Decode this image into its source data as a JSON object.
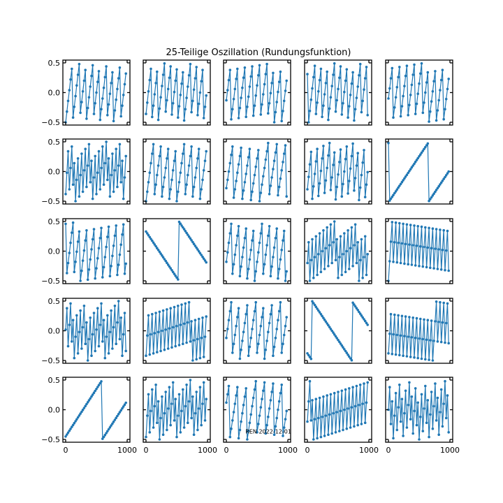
{
  "chart_data": {
    "type": "line",
    "title": "25-Teilige Oszillation (Rundungsfunktion)",
    "grid": false,
    "layout": {
      "rows": 5,
      "cols": 5
    },
    "xlim": [
      0,
      1000
    ],
    "ylim": [
      -0.5,
      0.5
    ],
    "x_ticks": [
      0,
      1000
    ],
    "x_tick_labels": [
      "0",
      "1000"
    ],
    "y_ticks": [
      0.5,
      0.0,
      -0.5
    ],
    "y_tick_labels": [
      "0.5",
      "0.0",
      "−0.5"
    ],
    "series_color": "#1f77b4",
    "sample_count": 50,
    "x_start": 0,
    "x_step": 20,
    "annotation": {
      "text": "REN 2022-12-01",
      "subplot": 23,
      "x": 310,
      "y": -0.4
    },
    "subplots": [
      {
        "phase": 0.0,
        "cycles_per_sample": 0.18
      },
      {
        "phase": 0.14,
        "cycles_per_sample": 0.19
      },
      {
        "phase": 0.37,
        "cycles_per_sample": 0.17
      },
      {
        "phase": 0.81,
        "cycles_per_sample": 0.19
      },
      {
        "phase": 0.4,
        "cycles_per_sample": 0.17
      },
      {
        "phase": 0.12,
        "cycles_per_sample": 0.36
      },
      {
        "phase": 0.0,
        "cycles_per_sample": 0.16
      },
      {
        "phase": 0.22,
        "cycles_per_sample": 0.14
      },
      {
        "phase": 0.2,
        "cycles_per_sample": 0.21
      },
      {
        "phase": 0.98,
        "cycles_per_sample": 0.031
      },
      {
        "phase": 0.96,
        "cycles_per_sample": 0.17
      },
      {
        "phase": 0.83,
        "cycles_per_sample": -0.031
      },
      {
        "phase": 0.32,
        "cycles_per_sample": 0.16
      },
      {
        "phase": 0.3,
        "cycles_per_sample": 0.35
      },
      {
        "phase": 0.0,
        "cycles_per_sample": 0.33
      },
      {
        "phase": 0.52,
        "cycles_per_sample": 0.36
      },
      {
        "phase": 0.08,
        "cycles_per_sample": 0.34
      },
      {
        "phase": 0.38,
        "cycles_per_sample": 0.15
      },
      {
        "phase": 0.12,
        "cycles_per_sample": -0.031
      },
      {
        "phase": 0.12,
        "cycles_per_sample": 0.33
      },
      {
        "phase": 0.05,
        "cycles_per_sample": 0.032
      },
      {
        "phase": 0.04,
        "cycles_per_sample": 0.36
      },
      {
        "phase": 0.62,
        "cycles_per_sample": 0.14
      },
      {
        "phase": 0.3,
        "cycles_per_sample": 0.34
      },
      {
        "phase": 0.5,
        "cycles_per_sample": 0.38
      }
    ]
  }
}
